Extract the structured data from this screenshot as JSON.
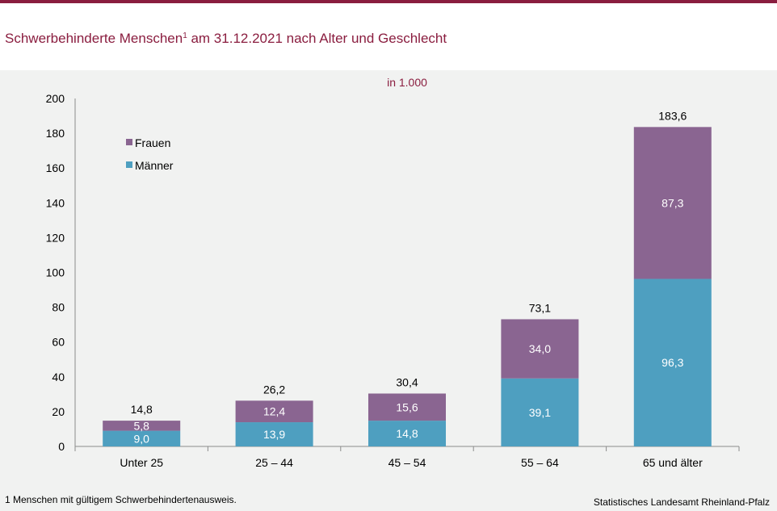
{
  "title": {
    "main_before": "Schwerbehinderte Menschen",
    "sup": "1",
    "main_after": " am 31.12.2021 nach Alter und Geschlecht"
  },
  "footnote": "1 Menschen mit gültigem Schwerbehindertenausweis.",
  "source": "Statistisches Landesamt Rheinland-Pfalz",
  "colors": {
    "brand": "#8a1d3f",
    "frauen": "#8a6591",
    "maenner": "#4e9fc0"
  },
  "chart_data": {
    "type": "bar",
    "stacked": true,
    "unit_label": "in 1.000",
    "categories": [
      "Unter 25",
      "25 – 44",
      "45 – 54",
      "55 – 64",
      "65 und älter"
    ],
    "series": [
      {
        "name": "Männer",
        "values": [
          9.0,
          13.9,
          14.8,
          39.1,
          96.3
        ],
        "labels": [
          "9,0",
          "13,9",
          "14,8",
          "39,1",
          "96,3"
        ]
      },
      {
        "name": "Frauen",
        "values": [
          5.8,
          12.4,
          15.6,
          34.0,
          87.3
        ],
        "labels": [
          "5,8",
          "12,4",
          "15,6",
          "34,0",
          "87,3"
        ]
      }
    ],
    "totals": [
      14.8,
      26.2,
      30.4,
      73.1,
      183.6
    ],
    "total_labels": [
      "14,8",
      "26,2",
      "30,4",
      "73,1",
      "183,6"
    ],
    "legend": [
      "Frauen",
      "Männer"
    ],
    "legend_position": "top-left",
    "ylim": [
      0,
      200
    ],
    "yticks": [
      0,
      20,
      40,
      60,
      80,
      100,
      120,
      140,
      160,
      180,
      200
    ],
    "grid": false
  }
}
